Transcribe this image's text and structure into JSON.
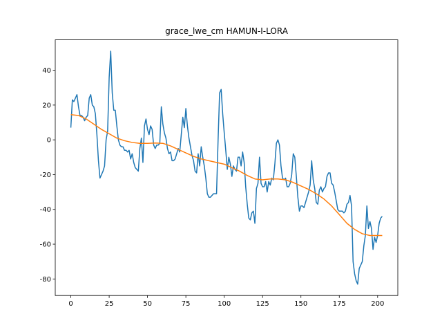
{
  "chart_data": {
    "type": "line",
    "title": "grace_lwe_cm HAMUN-I-LORA",
    "xlim": [
      -10.15,
      213.15
    ],
    "xticks": [
      0,
      25,
      50,
      75,
      100,
      125,
      150,
      175,
      200
    ],
    "ylim": [
      -89.5,
      57.5
    ],
    "yticks": [
      -80,
      -60,
      -40,
      -20,
      0,
      20,
      40
    ],
    "grid": false,
    "series": [
      {
        "color": "#1f77b4",
        "x": [
          0,
          1,
          2,
          3,
          4,
          5,
          6,
          7,
          8,
          9,
          10,
          11,
          12,
          13,
          14,
          15,
          16,
          17,
          18,
          19,
          20,
          21,
          22,
          23,
          24,
          25,
          26,
          27,
          28,
          29,
          30,
          31,
          32,
          33,
          34,
          35,
          36,
          37,
          38,
          39,
          40,
          41,
          42,
          43,
          44,
          45,
          46,
          47,
          48,
          49,
          50,
          51,
          52,
          53,
          54,
          55,
          56,
          57,
          58,
          59,
          60,
          61,
          62,
          63,
          64,
          65,
          66,
          67,
          68,
          69,
          70,
          71,
          72,
          73,
          74,
          75,
          76,
          77,
          78,
          79,
          80,
          81,
          82,
          83,
          84,
          85,
          86,
          87,
          88,
          89,
          90,
          91,
          92,
          93,
          94,
          95,
          96,
          97,
          98,
          99,
          100,
          101,
          102,
          103,
          104,
          105,
          106,
          107,
          108,
          109,
          110,
          111,
          112,
          113,
          114,
          115,
          116,
          117,
          118,
          119,
          120,
          121,
          122,
          123,
          124,
          125,
          126,
          127,
          128,
          129,
          130,
          131,
          132,
          133,
          134,
          135,
          136,
          137,
          138,
          139,
          140,
          141,
          142,
          143,
          144,
          145,
          146,
          147,
          148,
          149,
          150,
          151,
          152,
          153,
          154,
          155,
          156,
          157,
          158,
          159,
          160,
          161,
          162,
          163,
          164,
          165,
          166,
          167,
          168,
          169,
          170,
          171,
          172,
          173,
          174,
          175,
          176,
          177,
          178,
          179,
          180,
          181,
          182,
          183,
          184,
          185,
          186,
          187,
          188,
          189,
          190,
          191,
          192,
          193,
          194,
          195,
          196,
          197,
          198,
          199,
          200,
          201,
          202,
          203
        ],
        "values": [
          7,
          23,
          22,
          24,
          26,
          19,
          14,
          14,
          13,
          11,
          13,
          14,
          24,
          26,
          20,
          19,
          15,
          3,
          -12,
          -22,
          -20,
          -18,
          -15,
          0,
          5,
          36,
          51,
          27,
          17,
          17,
          8,
          0,
          -3,
          -4,
          -4,
          -6,
          -6,
          -7,
          -6,
          -11,
          -8,
          -13,
          -16,
          -17,
          -18,
          -5,
          1,
          -13,
          8,
          12,
          6,
          3,
          8,
          6,
          -3,
          -5,
          -3,
          -3,
          -2,
          19,
          9,
          4,
          1,
          -5,
          -8,
          -7,
          -12,
          -12,
          -11,
          -8,
          -5,
          -7,
          3,
          13,
          7,
          18,
          8,
          1,
          -4,
          -9,
          -12,
          -18,
          -19,
          -8,
          -15,
          -4,
          -10,
          -15,
          -22,
          -31,
          -33,
          -33,
          -32,
          -31,
          -31,
          -31,
          0,
          27,
          29,
          15,
          4,
          -6,
          -17,
          -10,
          -14,
          -21,
          -15,
          -17,
          -18,
          -10,
          -10,
          -15,
          -7,
          -13,
          -27,
          -37,
          -45,
          -46,
          -42,
          -41,
          -48,
          -28,
          -25,
          -10,
          -25,
          -27,
          -27,
          -24,
          -30,
          -24,
          -26,
          -22,
          -23,
          -14,
          -2,
          0,
          -3,
          -15,
          -22,
          -23,
          -22,
          -27,
          -27,
          -25,
          -20,
          -8,
          -10,
          -21,
          -33,
          -41,
          -38,
          -38,
          -39,
          -36,
          -33,
          -30,
          -26,
          -12,
          -23,
          -28,
          -36,
          -37,
          -29,
          -27,
          -30,
          -28,
          -27,
          -21,
          -19,
          -19,
          -25,
          -26,
          -30,
          -35,
          -40,
          -41,
          -41,
          -41,
          -42,
          -41,
          -37,
          -36,
          -32,
          -38,
          -70,
          -77,
          -81,
          -83,
          -74,
          -72,
          -70,
          -61,
          -55,
          -38,
          -51,
          -47,
          -51,
          -63,
          -56,
          -59,
          -55,
          -48,
          -45,
          -44
        ]
      },
      {
        "color": "#ff7f0e",
        "x": [
          0,
          5,
          10,
          15,
          20,
          25,
          30,
          35,
          40,
          45,
          50,
          55,
          60,
          65,
          70,
          75,
          80,
          85,
          90,
          95,
          100,
          105,
          110,
          115,
          120,
          125,
          130,
          135,
          140,
          145,
          150,
          155,
          160,
          165,
          170,
          175,
          180,
          185,
          190,
          195,
          200,
          203
        ],
        "values": [
          14.5,
          14,
          12,
          9,
          6,
          3.5,
          1,
          -0.5,
          -1.5,
          -2,
          -2,
          -1.8,
          -2,
          -3.5,
          -5.5,
          -7.5,
          -9.5,
          -11,
          -12,
          -13,
          -14,
          -16,
          -18,
          -20.5,
          -22.5,
          -23,
          -22.5,
          -22.5,
          -23,
          -24.5,
          -26.5,
          -28.5,
          -31,
          -34,
          -38,
          -43,
          -48,
          -51.5,
          -54,
          -55,
          -55,
          -55
        ]
      }
    ]
  }
}
